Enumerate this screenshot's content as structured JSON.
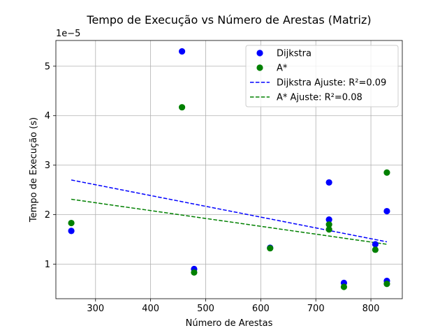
{
  "chart_data": {
    "type": "scatter",
    "title": "Tempo de Execução vs Número de Arestas (Matriz)",
    "xlabel": "Número de Arestas",
    "ylabel": "Tempo de Execução (s)",
    "y_offset_label": "1e−5",
    "y_scale": 1e-05,
    "xlim": [
      228,
      857
    ],
    "ylim": [
      0.3,
      5.52
    ],
    "x_ticks": [
      300,
      400,
      500,
      600,
      700,
      800
    ],
    "y_ticks": [
      1,
      2,
      3,
      4,
      5
    ],
    "grid": true,
    "legend_position": "top-right",
    "series": [
      {
        "name": "Dijkstra",
        "kind": "scatter",
        "color": "#0000ff",
        "points": [
          {
            "x": 256,
            "y": 1.67
          },
          {
            "x": 457,
            "y": 5.3
          },
          {
            "x": 479,
            "y": 0.9
          },
          {
            "x": 617,
            "y": 1.33
          },
          {
            "x": 724,
            "y": 2.65
          },
          {
            "x": 724,
            "y": 1.9
          },
          {
            "x": 751,
            "y": 0.62
          },
          {
            "x": 808,
            "y": 1.4
          },
          {
            "x": 829,
            "y": 2.07
          },
          {
            "x": 829,
            "y": 0.66
          }
        ]
      },
      {
        "name": "A*",
        "kind": "scatter",
        "color": "#008000",
        "points": [
          {
            "x": 256,
            "y": 1.83
          },
          {
            "x": 457,
            "y": 4.17
          },
          {
            "x": 479,
            "y": 0.83
          },
          {
            "x": 617,
            "y": 1.32
          },
          {
            "x": 724,
            "y": 1.8
          },
          {
            "x": 724,
            "y": 1.7
          },
          {
            "x": 751,
            "y": 0.54
          },
          {
            "x": 808,
            "y": 1.29
          },
          {
            "x": 829,
            "y": 2.85
          },
          {
            "x": 829,
            "y": 0.6
          }
        ]
      },
      {
        "name": "Dijkstra Ajuste: R²=0.09",
        "kind": "line",
        "dash": true,
        "color": "#0000ff",
        "points": [
          {
            "x": 256,
            "y": 2.7
          },
          {
            "x": 829,
            "y": 1.45
          }
        ]
      },
      {
        "name": "A* Ajuste: R²=0.08",
        "kind": "line",
        "dash": true,
        "color": "#008000",
        "points": [
          {
            "x": 256,
            "y": 2.31
          },
          {
            "x": 829,
            "y": 1.4
          }
        ]
      }
    ]
  }
}
